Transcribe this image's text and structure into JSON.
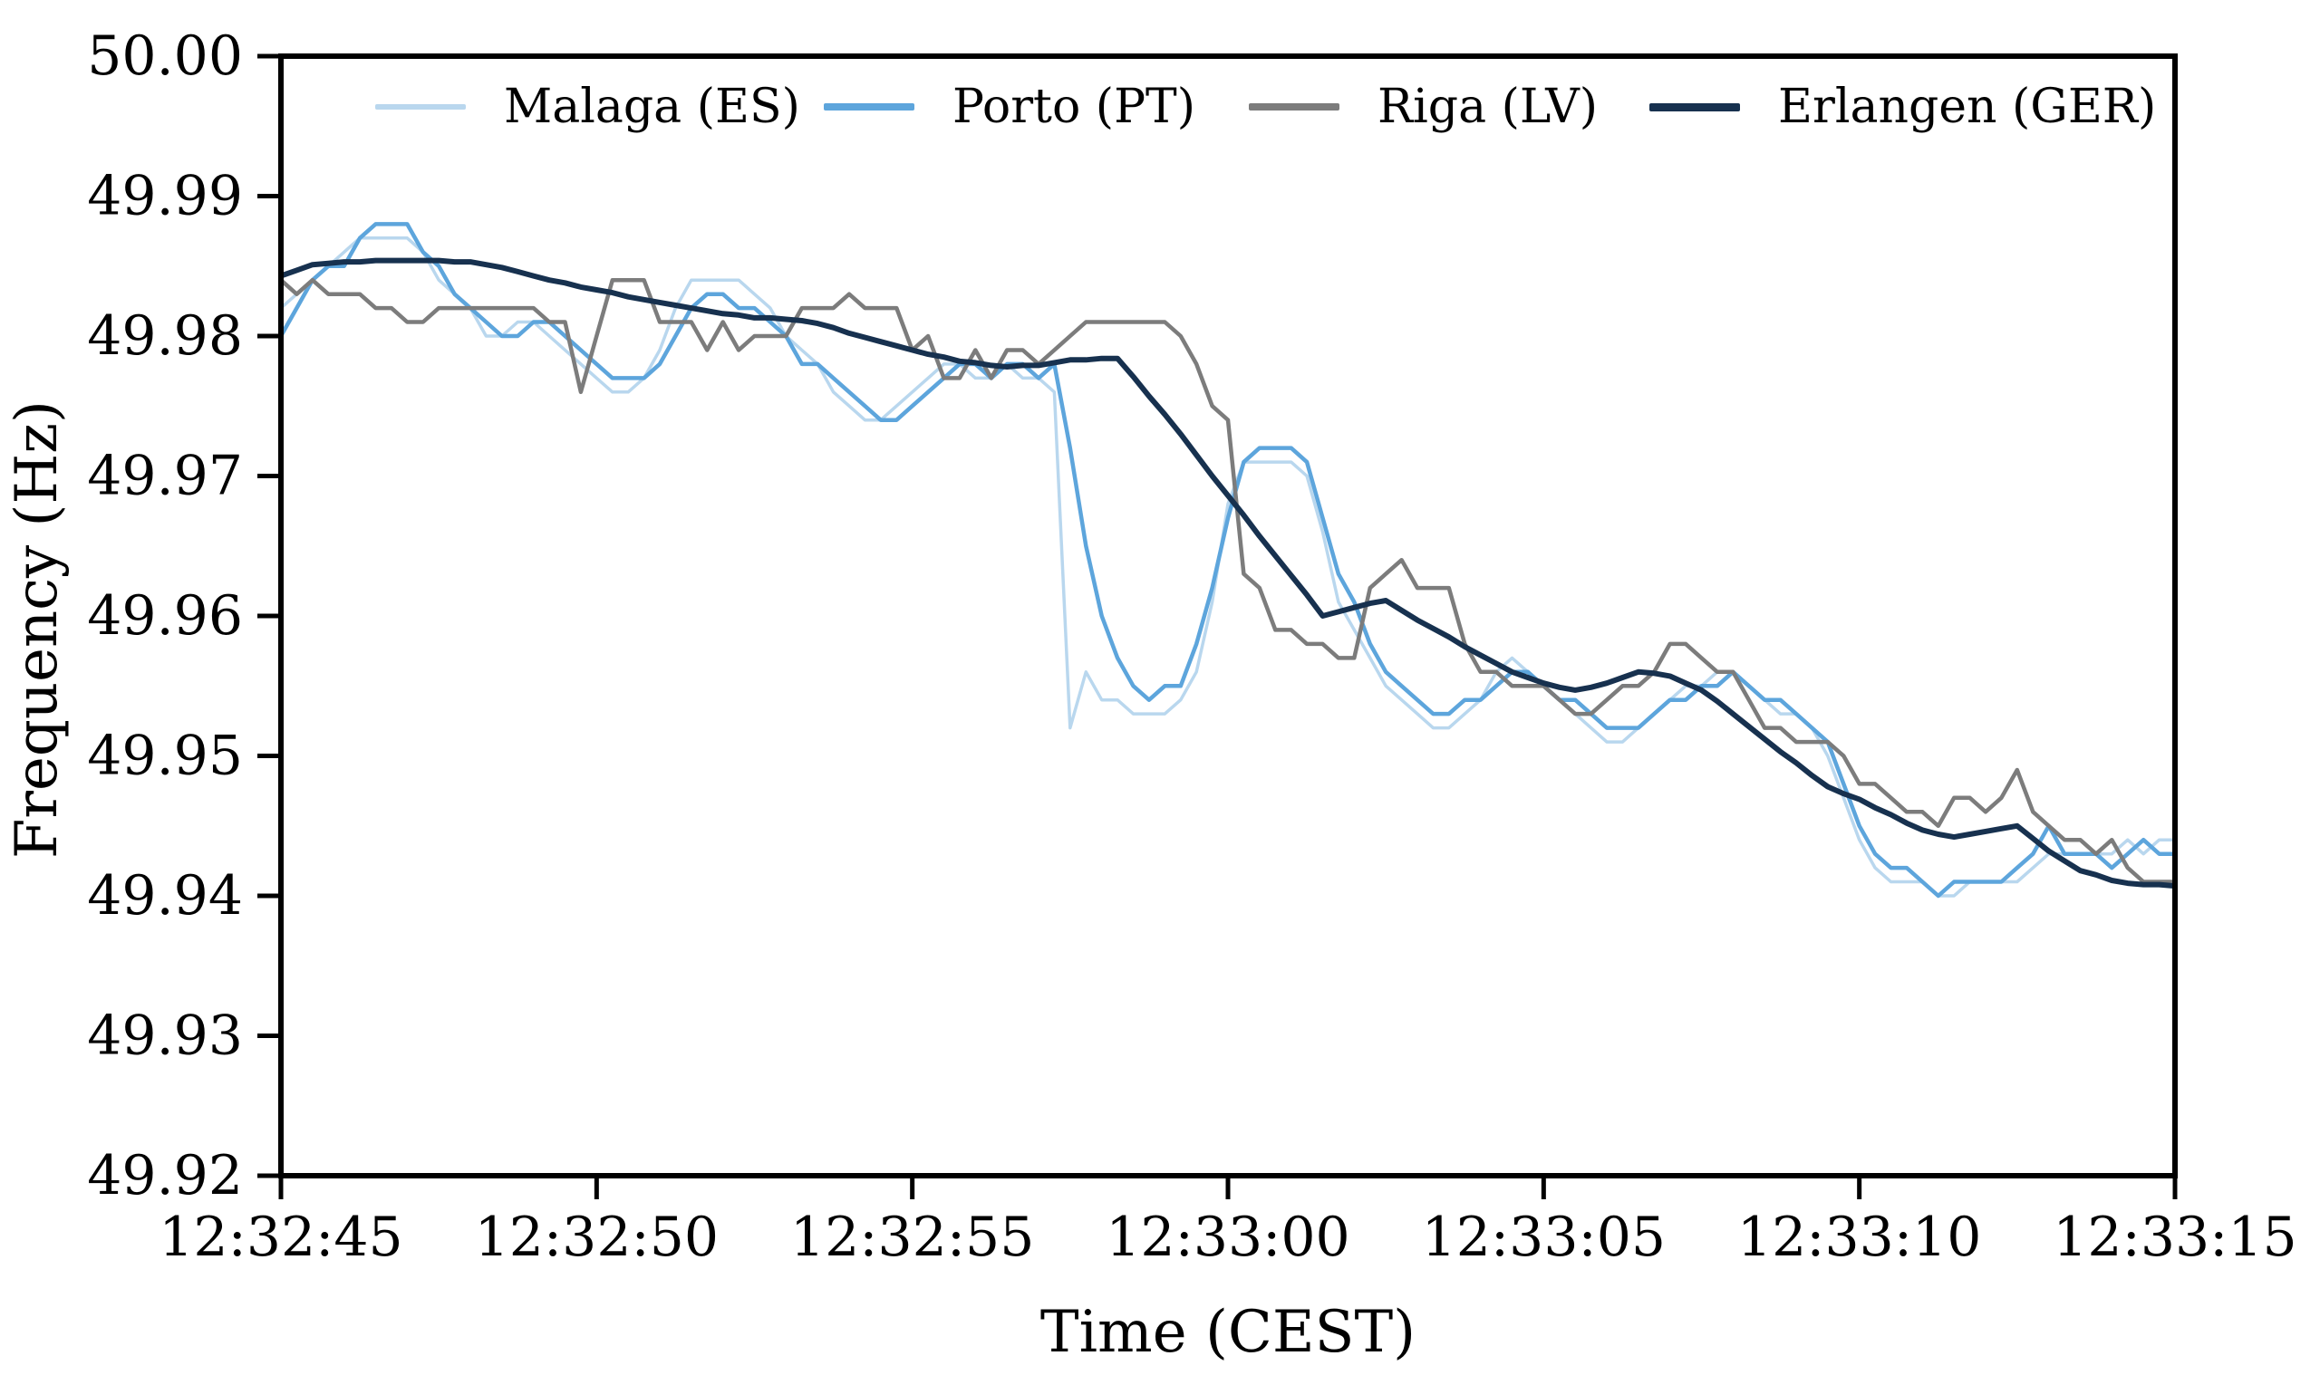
{
  "chart_data": {
    "type": "line",
    "title": "",
    "xlabel": "Time (CEST)",
    "ylabel": "Frequency (Hz)",
    "grid": false,
    "legend_position": "top-inside-horizontal",
    "xlim_seconds": [
      0,
      30
    ],
    "ylim": [
      49.92,
      50.0
    ],
    "x_tick_seconds": [
      0,
      5,
      10,
      15,
      20,
      25,
      30
    ],
    "x_tick_labels": [
      "12:32:45",
      "12:32:50",
      "12:32:55",
      "12:33:00",
      "12:33:05",
      "12:33:10",
      "12:33:15"
    ],
    "y_tick_values": [
      50.0,
      49.99,
      49.98,
      49.97,
      49.96,
      49.95,
      49.94,
      49.93,
      49.92
    ],
    "y_tick_labels": [
      "50.00",
      "49.99",
      "49.98",
      "49.97",
      "49.96",
      "49.95",
      "49.94",
      "49.93",
      "49.92"
    ],
    "sample_interval_seconds": 0.25,
    "series": [
      {
        "name": "Malaga (ES)",
        "color": "#b9d7ee",
        "stroke_width": 3.5,
        "values": [
          49.982,
          49.983,
          49.984,
          49.985,
          49.986,
          49.987,
          49.987,
          49.987,
          49.987,
          49.986,
          49.984,
          49.983,
          49.982,
          49.98,
          49.98,
          49.981,
          49.981,
          49.98,
          49.979,
          49.978,
          49.977,
          49.976,
          49.976,
          49.977,
          49.979,
          49.982,
          49.984,
          49.984,
          49.984,
          49.984,
          49.983,
          49.982,
          49.98,
          49.979,
          49.978,
          49.976,
          49.975,
          49.974,
          49.974,
          49.975,
          49.976,
          49.977,
          49.978,
          49.978,
          49.977,
          49.977,
          49.978,
          49.977,
          49.977,
          49.976,
          49.952,
          49.956,
          49.954,
          49.954,
          49.953,
          49.953,
          49.953,
          49.954,
          49.956,
          49.961,
          49.968,
          49.971,
          49.971,
          49.971,
          49.971,
          49.97,
          49.966,
          49.961,
          49.959,
          49.957,
          49.955,
          49.954,
          49.953,
          49.952,
          49.952,
          49.953,
          49.954,
          49.956,
          49.957,
          49.956,
          49.955,
          49.954,
          49.953,
          49.952,
          49.951,
          49.951,
          49.952,
          49.953,
          49.954,
          49.955,
          49.955,
          49.956,
          49.956,
          49.955,
          49.954,
          49.953,
          49.953,
          49.952,
          49.95,
          49.947,
          49.944,
          49.942,
          49.941,
          49.941,
          49.941,
          49.94,
          49.94,
          49.941,
          49.941,
          49.941,
          49.941,
          49.942,
          49.943,
          49.943,
          49.943,
          49.943,
          49.943,
          49.944,
          49.943,
          49.944,
          49.944
        ]
      },
      {
        "name": "Porto (PT)",
        "color": "#5da5dc",
        "stroke_width": 4.5,
        "values": [
          49.98,
          49.982,
          49.984,
          49.985,
          49.985,
          49.987,
          49.988,
          49.988,
          49.988,
          49.986,
          49.985,
          49.983,
          49.982,
          49.981,
          49.98,
          49.98,
          49.981,
          49.981,
          49.98,
          49.979,
          49.978,
          49.977,
          49.977,
          49.977,
          49.978,
          49.98,
          49.982,
          49.983,
          49.983,
          49.982,
          49.982,
          49.981,
          49.98,
          49.978,
          49.978,
          49.977,
          49.976,
          49.975,
          49.974,
          49.974,
          49.975,
          49.976,
          49.977,
          49.978,
          49.978,
          49.977,
          49.978,
          49.978,
          49.977,
          49.978,
          49.972,
          49.965,
          49.96,
          49.957,
          49.955,
          49.954,
          49.955,
          49.955,
          49.958,
          49.962,
          49.967,
          49.971,
          49.972,
          49.972,
          49.972,
          49.971,
          49.967,
          49.963,
          49.961,
          49.958,
          49.956,
          49.955,
          49.954,
          49.953,
          49.953,
          49.954,
          49.954,
          49.955,
          49.956,
          49.956,
          49.955,
          49.954,
          49.954,
          49.953,
          49.952,
          49.952,
          49.952,
          49.953,
          49.954,
          49.954,
          49.955,
          49.955,
          49.956,
          49.955,
          49.954,
          49.954,
          49.953,
          49.952,
          49.951,
          49.948,
          49.945,
          49.943,
          49.942,
          49.942,
          49.941,
          49.94,
          49.941,
          49.941,
          49.941,
          49.941,
          49.942,
          49.943,
          49.945,
          49.943,
          49.943,
          49.943,
          49.942,
          49.943,
          49.944,
          49.943,
          49.943
        ]
      },
      {
        "name": "Riga (LV)",
        "color": "#7c7c7c",
        "stroke_width": 4.5,
        "values": [
          49.984,
          49.983,
          49.984,
          49.983,
          49.983,
          49.983,
          49.982,
          49.982,
          49.981,
          49.981,
          49.982,
          49.982,
          49.982,
          49.982,
          49.982,
          49.982,
          49.982,
          49.981,
          49.981,
          49.976,
          49.98,
          49.984,
          49.984,
          49.984,
          49.981,
          49.981,
          49.981,
          49.979,
          49.981,
          49.979,
          49.98,
          49.98,
          49.98,
          49.982,
          49.982,
          49.982,
          49.983,
          49.982,
          49.982,
          49.982,
          49.979,
          49.98,
          49.977,
          49.977,
          49.979,
          49.977,
          49.979,
          49.979,
          49.978,
          49.979,
          49.98,
          49.981,
          49.981,
          49.981,
          49.981,
          49.981,
          49.981,
          49.98,
          49.978,
          49.975,
          49.974,
          49.963,
          49.962,
          49.959,
          49.959,
          49.958,
          49.958,
          49.957,
          49.957,
          49.962,
          49.963,
          49.964,
          49.962,
          49.962,
          49.962,
          49.958,
          49.956,
          49.956,
          49.955,
          49.955,
          49.955,
          49.954,
          49.953,
          49.953,
          49.954,
          49.955,
          49.955,
          49.956,
          49.958,
          49.958,
          49.957,
          49.956,
          49.956,
          49.954,
          49.952,
          49.952,
          49.951,
          49.951,
          49.951,
          49.95,
          49.948,
          49.948,
          49.947,
          49.946,
          49.946,
          49.945,
          49.947,
          49.947,
          49.946,
          49.947,
          49.949,
          49.946,
          49.945,
          49.944,
          49.944,
          49.943,
          49.944,
          49.942,
          49.941,
          49.941,
          49.941
        ]
      },
      {
        "name": "Erlangen (GER)",
        "color": "#17314f",
        "stroke_width": 6,
        "values": [
          49.9843,
          49.9847,
          49.9851,
          49.9852,
          49.9853,
          49.9853,
          49.9854,
          49.9854,
          49.9854,
          49.9854,
          49.9854,
          49.9853,
          49.9853,
          49.9851,
          49.9849,
          49.9846,
          49.9843,
          49.984,
          49.9838,
          49.9835,
          49.9833,
          49.9831,
          49.9828,
          49.9826,
          49.9824,
          49.9822,
          49.982,
          49.9818,
          49.9816,
          49.9815,
          49.9813,
          49.9813,
          49.9812,
          49.9811,
          49.9809,
          49.9806,
          49.9802,
          49.9799,
          49.9796,
          49.9793,
          49.979,
          49.9787,
          49.9785,
          49.9782,
          49.9781,
          49.9779,
          49.9778,
          49.9779,
          49.9779,
          49.9781,
          49.9783,
          49.9783,
          49.9784,
          49.9784,
          49.9771,
          49.9757,
          49.9744,
          49.973,
          49.9715,
          49.97,
          49.9686,
          49.9672,
          49.9657,
          49.9643,
          49.9629,
          49.9615,
          49.96,
          49.9603,
          49.9606,
          49.9609,
          49.9611,
          49.9604,
          49.9597,
          49.9591,
          49.9585,
          49.9578,
          49.9572,
          49.9566,
          49.956,
          49.9556,
          49.9552,
          49.9549,
          49.9547,
          49.9549,
          49.9552,
          49.9556,
          49.956,
          49.9559,
          49.9557,
          49.9552,
          49.9547,
          49.9539,
          49.953,
          49.9521,
          49.9512,
          49.9503,
          49.9495,
          49.9486,
          49.9478,
          49.9473,
          49.9469,
          49.9463,
          49.9458,
          49.9452,
          49.9447,
          49.9444,
          49.9442,
          49.9444,
          49.9446,
          49.9448,
          49.945,
          49.9441,
          49.9432,
          49.9425,
          49.9418,
          49.9415,
          49.9411,
          49.9409,
          49.9408,
          49.9408,
          49.9407
        ]
      }
    ]
  },
  "legend": {
    "items": [
      {
        "label": "Malaga (ES)"
      },
      {
        "label": "Porto (PT)"
      },
      {
        "label": "Riga (LV)"
      },
      {
        "label": "Erlangen (GER)"
      }
    ]
  },
  "style": {
    "background": "#ffffff",
    "axis_color": "#000000",
    "text_color": "#000000"
  }
}
